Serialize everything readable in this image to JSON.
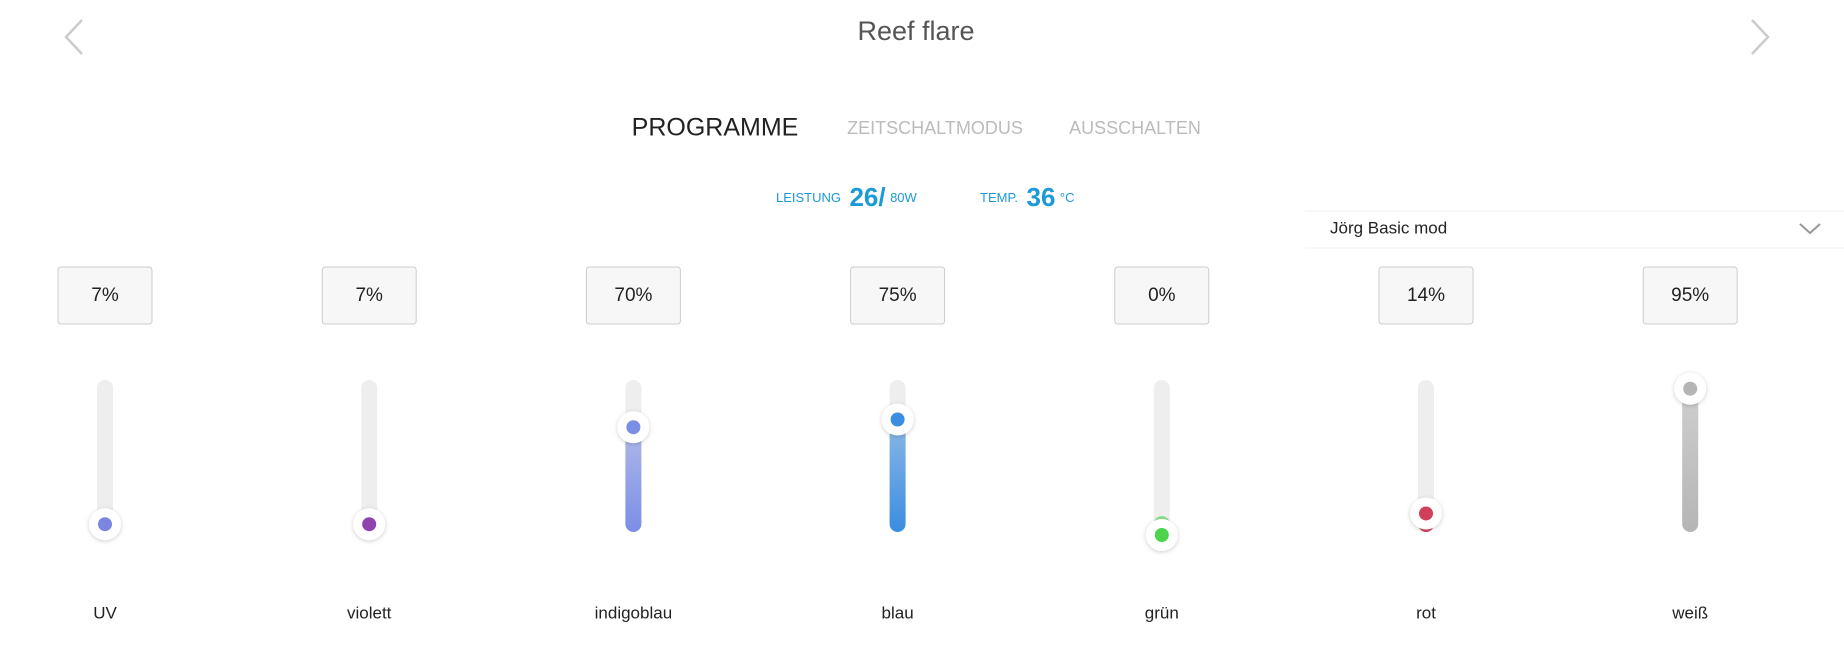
{
  "header": {
    "title": "Reef flare"
  },
  "tabs": [
    "PROGRAMME",
    "ZEITSCHALTMODUS",
    "AUSSCHALTEN"
  ],
  "status": {
    "power_label": "LEISTUNG",
    "power_value": "26/",
    "power_max": "80W",
    "temp_label": "TEMP.",
    "temp_value": "36",
    "temp_unit": "°C"
  },
  "dropdown": {
    "selected": "Jörg Basic mod"
  },
  "sliders": [
    {
      "name": "UV",
      "value": 7,
      "value_label": "7%",
      "color": "#7b86e0"
    },
    {
      "name": "violett",
      "value": 7,
      "value_label": "7%",
      "color": "#8e44ad"
    },
    {
      "name": "indigoblau",
      "value": 70,
      "value_label": "70%",
      "color": "#7b8ee6"
    },
    {
      "name": "blau",
      "value": 75,
      "value_label": "75%",
      "color": "#3b8de0"
    },
    {
      "name": "grün",
      "value": 0,
      "value_label": "0%",
      "color": "#4cd44c"
    },
    {
      "name": "rot",
      "value": 14,
      "value_label": "14%",
      "color": "#d0405a"
    },
    {
      "name": "weiß",
      "value": 95,
      "value_label": "95%",
      "color": "#b5b5b5"
    }
  ]
}
